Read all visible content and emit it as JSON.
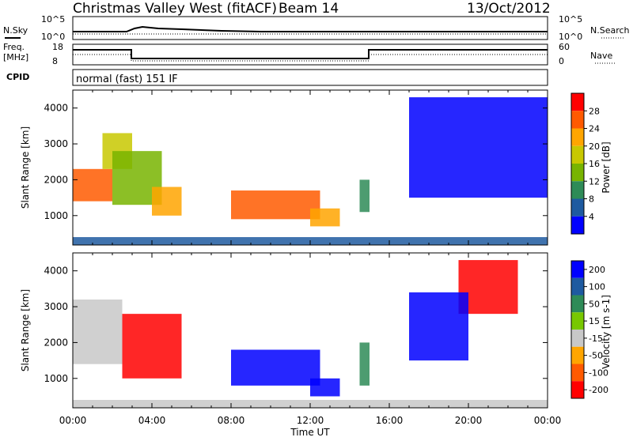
{
  "header": {
    "title": "Christmas Valley West (fitACF)",
    "beam": "Beam 14",
    "date": "13/Oct/2012"
  },
  "nsky_panel": {
    "left_label": "N.Sky",
    "right_label": "N.Search",
    "left_ticks": [
      "10^5",
      "10^0"
    ],
    "right_ticks": [
      "10^5",
      "10^0"
    ]
  },
  "freq_panel": {
    "left_label_1": "Freq.",
    "left_label_2": "[MHz]",
    "right_label": "Nave",
    "left_ticks": [
      "18",
      "8"
    ],
    "right_ticks": [
      "60",
      "0"
    ]
  },
  "cpid_panel": {
    "label": "CPID",
    "mode": "normal (fast) 151 IF"
  },
  "x_axis": {
    "label": "Time UT",
    "ticks": [
      "00:00",
      "04:00",
      "08:00",
      "12:00",
      "16:00",
      "20:00",
      "00:00"
    ]
  },
  "power_colorbar": {
    "label": "Power [dB]",
    "ticks": [
      "28",
      "24",
      "20",
      "16",
      "12",
      "8",
      "4"
    ],
    "colors": [
      "#ff0000",
      "#ff5a00",
      "#ffa500",
      "#c8c800",
      "#78b400",
      "#2e8b57",
      "#1e5aa0",
      "#0000ff"
    ]
  },
  "velocity_colorbar": {
    "label": "Velocity [m s-1]",
    "ticks": [
      "200",
      "100",
      "50",
      "15",
      "-15",
      "-50",
      "-100",
      "-200"
    ],
    "colors": [
      "#0000ff",
      "#1e5aa0",
      "#2e8b57",
      "#78c800",
      "#c8c8c8",
      "#ffa500",
      "#ff5a00",
      "#ff0000"
    ]
  },
  "chart_data": [
    {
      "type": "heatmap",
      "panel": "power",
      "ylabel": "Slant Range [km]",
      "xlabel": "",
      "xlim": [
        "00:00",
        "24:00"
      ],
      "ylim": [
        180,
        4500
      ],
      "yticks": [
        1000,
        2000,
        3000,
        4000
      ],
      "colorbar_label": "Power [dB]",
      "regions": [
        {
          "x": [
            0.0,
            2.0
          ],
          "y": [
            1400,
            2300
          ],
          "value": 28
        },
        {
          "x": [
            1.5,
            3.0
          ],
          "y": [
            2300,
            3300
          ],
          "value": 20
        },
        {
          "x": [
            2.0,
            4.5
          ],
          "y": [
            1300,
            2800
          ],
          "value": 16
        },
        {
          "x": [
            4.0,
            5.5
          ],
          "y": [
            1000,
            1800
          ],
          "value": 24
        },
        {
          "x": [
            8.0,
            12.5
          ],
          "y": [
            900,
            1700
          ],
          "value": 28
        },
        {
          "x": [
            12.0,
            13.5
          ],
          "y": [
            700,
            1200
          ],
          "value": 24
        },
        {
          "x": [
            14.5,
            15.0
          ],
          "y": [
            1100,
            2000
          ],
          "value": 12
        },
        {
          "x": [
            0.0,
            24.0
          ],
          "y": [
            180,
            400
          ],
          "value": 8
        },
        {
          "x": [
            17.0,
            24.0
          ],
          "y": [
            1500,
            4300
          ],
          "value": 4
        }
      ]
    },
    {
      "type": "heatmap",
      "panel": "velocity",
      "ylabel": "Slant Range [km]",
      "xlabel": "Time UT",
      "xlim": [
        "00:00",
        "24:00"
      ],
      "ylim": [
        180,
        4500
      ],
      "yticks": [
        1000,
        2000,
        3000,
        4000
      ],
      "colorbar_label": "Velocity [m s-1]",
      "regions": [
        {
          "x": [
            0.0,
            2.5
          ],
          "y": [
            1400,
            3200
          ],
          "value": 0
        },
        {
          "x": [
            2.5,
            5.5
          ],
          "y": [
            1000,
            2800
          ],
          "value": -200
        },
        {
          "x": [
            8.0,
            12.5
          ],
          "y": [
            800,
            1800
          ],
          "value": 200
        },
        {
          "x": [
            12.0,
            13.5
          ],
          "y": [
            500,
            1000
          ],
          "value": 200
        },
        {
          "x": [
            14.5,
            15.0
          ],
          "y": [
            800,
            2000
          ],
          "value": 50
        },
        {
          "x": [
            0.0,
            24.0
          ],
          "y": [
            180,
            400
          ],
          "value": 0
        },
        {
          "x": [
            19.5,
            22.5
          ],
          "y": [
            2800,
            4300
          ],
          "value": -200
        },
        {
          "x": [
            17.0,
            20.0
          ],
          "y": [
            1500,
            3400
          ],
          "value": 200
        }
      ]
    }
  ]
}
